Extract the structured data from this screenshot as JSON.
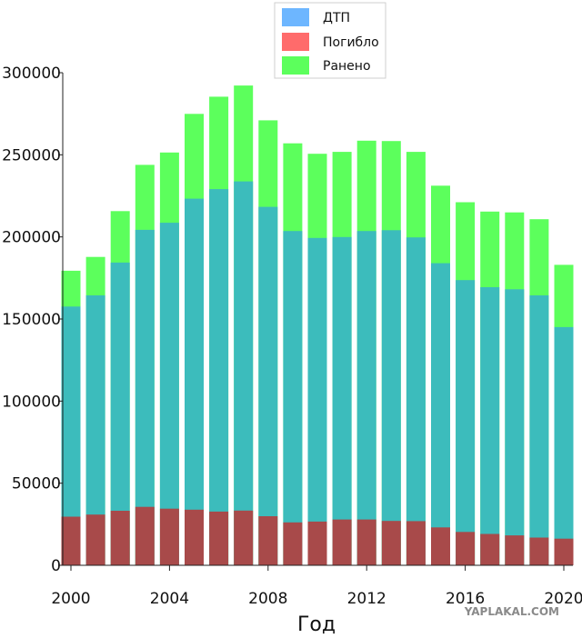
{
  "chart_data": {
    "type": "bar",
    "stacked": false,
    "xlabel": "Год",
    "ylabel": "",
    "ylim": [
      0,
      300000
    ],
    "yticks": [
      0,
      50000,
      100000,
      150000,
      200000,
      250000,
      300000
    ],
    "xticks": [
      2000,
      2004,
      2008,
      2012,
      2016,
      2020
    ],
    "grid": false,
    "legend_position": "top-center",
    "years": [
      2000,
      2001,
      2002,
      2003,
      2004,
      2005,
      2006,
      2007,
      2008,
      2009,
      2010,
      2011,
      2012,
      2013,
      2014,
      2015,
      2016,
      2017,
      2018,
      2019,
      2020
    ],
    "series": [
      {
        "name": "ДТП",
        "color": "#6db6ff",
        "values": [
          157600,
          164400,
          184400,
          204300,
          208600,
          223300,
          229100,
          233800,
          218300,
          203600,
          199400,
          199900,
          203600,
          204100,
          199700,
          184000,
          173700,
          169400,
          168100,
          164400,
          145100
        ]
      },
      {
        "name": "Погибло",
        "color": "#ff6b6b",
        "values": [
          29600,
          30900,
          33200,
          35600,
          34500,
          33900,
          32700,
          33300,
          29900,
          26100,
          26600,
          27900,
          27900,
          27000,
          26900,
          23100,
          20300,
          19100,
          18200,
          16900,
          16200
        ]
      },
      {
        "name": "Ранено",
        "color": "#5cff5c",
        "values": [
          179400,
          187800,
          215700,
          243900,
          251400,
          274900,
          285400,
          292200,
          271000,
          257000,
          250600,
          251800,
          258600,
          258400,
          251800,
          231200,
          221100,
          215400,
          214900,
          210800,
          183000
        ]
      }
    ],
    "overlap_colors": {
      "ДТП_over_Ранено": "#3cbcbc",
      "Погибло_over_ДТП": "#a84a4a"
    }
  },
  "watermark": "YAPLAKAL.COM"
}
